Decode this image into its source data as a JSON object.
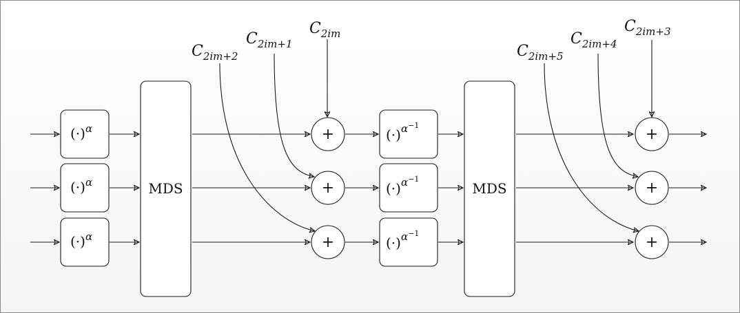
{
  "diagram": {
    "power_label": {
      "base": "(·)",
      "sup": "α"
    },
    "inverse_label": {
      "base": "(·)",
      "sup": "α",
      "sup_exp": "−1"
    },
    "mds_label": "MDS",
    "plus_symbol": "+",
    "constants_stage1": [
      {
        "letter": "C",
        "sub": "2im"
      },
      {
        "letter": "C",
        "sub": "2im+1"
      },
      {
        "letter": "C",
        "sub": "2im+2"
      }
    ],
    "constants_stage2": [
      {
        "letter": "C",
        "sub": "2im+3"
      },
      {
        "letter": "C",
        "sub": "2im+4"
      },
      {
        "letter": "C",
        "sub": "2im+5"
      }
    ]
  }
}
